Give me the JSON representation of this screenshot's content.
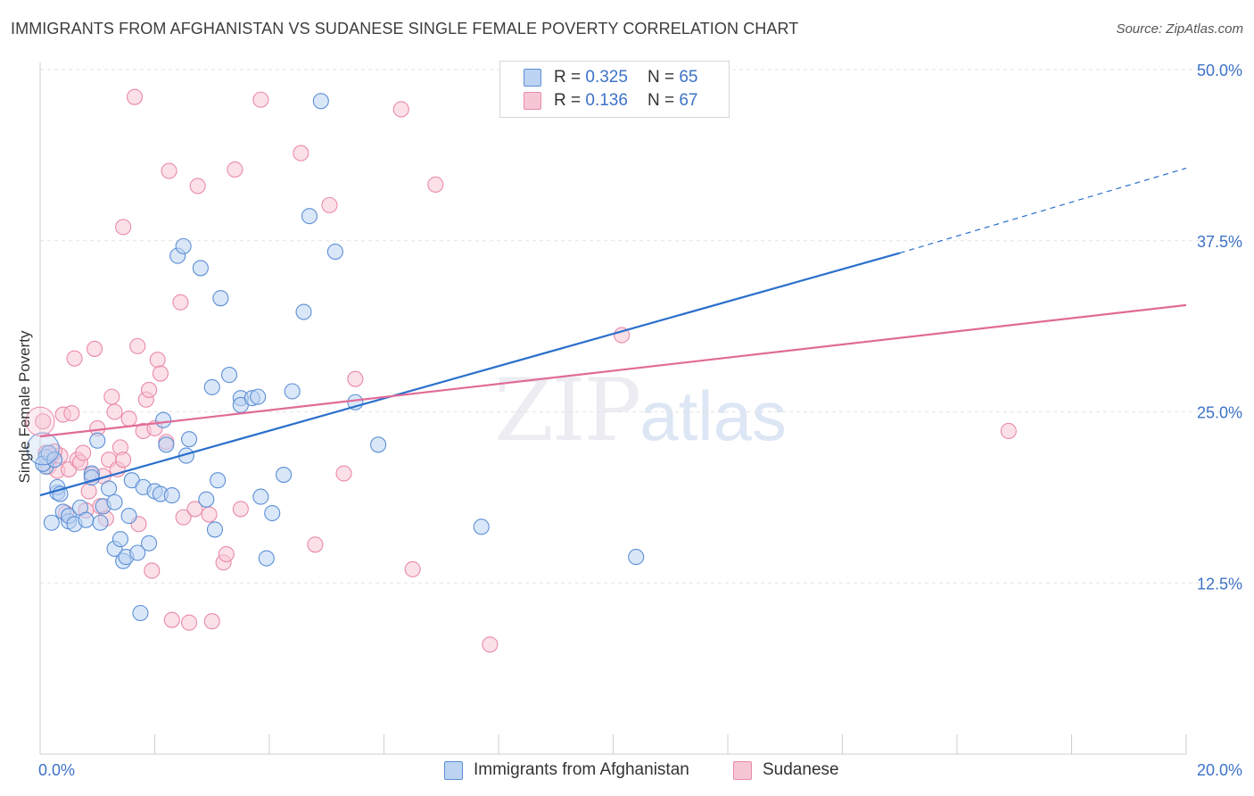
{
  "header": {
    "title": "IMMIGRANTS FROM AFGHANISTAN VS SUDANESE SINGLE FEMALE POVERTY CORRELATION CHART",
    "source": "Source: ZipAtlas.com"
  },
  "legend": {
    "rows": [
      {
        "r_label": "R =",
        "r_value": "0.325",
        "n_label": "N =",
        "n_value": "65"
      },
      {
        "r_label": "R =",
        "r_value": "0.136",
        "n_label": "N =",
        "n_value": "67"
      }
    ]
  },
  "bottom_legend": {
    "series1": "Immigrants from Afghanistan",
    "series2": "Sudanese"
  },
  "watermark": {
    "zip": "ZIP",
    "atlas": "atlas"
  },
  "colors": {
    "blue": "#5b8fd6",
    "blue_fill": "#bcd3f2",
    "blue_line": "#2a6fcc",
    "pink": "#e98aa8",
    "pink_fill": "#f7c6d5",
    "pink_line": "#e06b97",
    "axis_text": "#3d72c7"
  },
  "chart_data": {
    "type": "scatter",
    "title": "IMMIGRANTS FROM AFGHANISTAN VS SUDANESE SINGLE FEMALE POVERTY CORRELATION CHART",
    "xlabel": "",
    "ylabel": "Single Female Poverty",
    "xlim": [
      0,
      20
    ],
    "ylim": [
      0,
      50
    ],
    "x_tick_labels": [
      "0.0%",
      "20.0%"
    ],
    "y_ticks": [
      12.5,
      25.0,
      37.5,
      50.0
    ],
    "y_tick_labels": [
      "12.5%",
      "25.0%",
      "37.5%",
      "50.0%"
    ],
    "grid": true,
    "legend_position": "top-center",
    "series": [
      {
        "name": "Immigrants from Afghanistan",
        "color": "#5b8fd6",
        "r": 0.325,
        "n": 65,
        "trend": {
          "x0": 0,
          "y0": 18.9,
          "x1": 15.0,
          "y1": 36.6,
          "dashed_to_x": 20,
          "dashed_to_y": 42.8
        },
        "points": [
          [
            0.1,
            21.0
          ],
          [
            0.1,
            21.7
          ],
          [
            0.2,
            16.9
          ],
          [
            0.3,
            19.1
          ],
          [
            0.3,
            19.5
          ],
          [
            0.35,
            19.0
          ],
          [
            0.4,
            17.7
          ],
          [
            0.5,
            17.0
          ],
          [
            0.5,
            17.4
          ],
          [
            0.6,
            16.8
          ],
          [
            0.7,
            18.0
          ],
          [
            0.8,
            17.1
          ],
          [
            0.9,
            20.5
          ],
          [
            0.9,
            20.2
          ],
          [
            1.0,
            22.9
          ],
          [
            1.1,
            18.1
          ],
          [
            1.2,
            19.4
          ],
          [
            1.3,
            18.4
          ],
          [
            1.3,
            15.0
          ],
          [
            1.4,
            15.7
          ],
          [
            1.45,
            14.1
          ],
          [
            1.5,
            14.4
          ],
          [
            1.55,
            17.4
          ],
          [
            1.6,
            20.0
          ],
          [
            1.7,
            14.7
          ],
          [
            1.75,
            10.3
          ],
          [
            1.8,
            19.5
          ],
          [
            1.9,
            15.4
          ],
          [
            2.0,
            19.2
          ],
          [
            2.1,
            19.0
          ],
          [
            2.15,
            24.4
          ],
          [
            2.2,
            22.6
          ],
          [
            2.3,
            18.9
          ],
          [
            2.4,
            36.4
          ],
          [
            2.5,
            37.1
          ],
          [
            2.55,
            21.8
          ],
          [
            2.6,
            23.0
          ],
          [
            2.8,
            35.5
          ],
          [
            2.9,
            18.6
          ],
          [
            3.0,
            26.8
          ],
          [
            3.05,
            16.4
          ],
          [
            3.1,
            20.0
          ],
          [
            3.15,
            33.3
          ],
          [
            3.3,
            27.7
          ],
          [
            3.5,
            26.0
          ],
          [
            3.5,
            25.5
          ],
          [
            3.7,
            26.0
          ],
          [
            3.8,
            26.1
          ],
          [
            3.85,
            18.8
          ],
          [
            3.95,
            14.3
          ],
          [
            4.05,
            17.6
          ],
          [
            4.25,
            20.4
          ],
          [
            4.4,
            26.5
          ],
          [
            4.6,
            32.3
          ],
          [
            4.7,
            39.3
          ],
          [
            4.9,
            47.7
          ],
          [
            5.15,
            36.7
          ],
          [
            5.5,
            25.7
          ],
          [
            5.9,
            22.6
          ],
          [
            7.7,
            16.6
          ],
          [
            10.4,
            14.4
          ],
          [
            0.05,
            21.2
          ],
          [
            0.15,
            22.0
          ],
          [
            0.25,
            21.5
          ],
          [
            1.05,
            16.9
          ]
        ]
      },
      {
        "name": "Sudanese",
        "color": "#e98aa8",
        "r": 0.136,
        "n": 67,
        "trend": {
          "x0": 0,
          "y0": 23.2,
          "x1": 20,
          "y1": 32.8
        },
        "points": [
          [
            0.05,
            24.3
          ],
          [
            0.1,
            22.0
          ],
          [
            0.15,
            21.0
          ],
          [
            0.2,
            21.8
          ],
          [
            0.3,
            20.7
          ],
          [
            0.35,
            21.8
          ],
          [
            0.4,
            24.8
          ],
          [
            0.45,
            17.6
          ],
          [
            0.5,
            20.8
          ],
          [
            0.55,
            24.9
          ],
          [
            0.6,
            28.9
          ],
          [
            0.65,
            21.5
          ],
          [
            0.7,
            21.3
          ],
          [
            0.75,
            22.0
          ],
          [
            0.8,
            17.8
          ],
          [
            0.85,
            19.2
          ],
          [
            0.9,
            20.4
          ],
          [
            0.95,
            29.6
          ],
          [
            1.0,
            23.8
          ],
          [
            1.05,
            18.1
          ],
          [
            1.1,
            20.3
          ],
          [
            1.2,
            21.5
          ],
          [
            1.25,
            26.1
          ],
          [
            1.3,
            25.0
          ],
          [
            1.35,
            20.8
          ],
          [
            1.4,
            22.4
          ],
          [
            1.45,
            21.5
          ],
          [
            1.45,
            38.5
          ],
          [
            1.55,
            24.5
          ],
          [
            1.65,
            48.0
          ],
          [
            1.7,
            29.8
          ],
          [
            1.72,
            16.8
          ],
          [
            1.8,
            23.6
          ],
          [
            1.85,
            25.9
          ],
          [
            1.9,
            26.6
          ],
          [
            1.95,
            13.4
          ],
          [
            2.0,
            23.8
          ],
          [
            2.05,
            28.8
          ],
          [
            2.1,
            27.8
          ],
          [
            2.2,
            22.8
          ],
          [
            2.25,
            42.6
          ],
          [
            2.3,
            9.8
          ],
          [
            2.45,
            33.0
          ],
          [
            2.5,
            17.3
          ],
          [
            2.6,
            9.6
          ],
          [
            2.7,
            17.9
          ],
          [
            2.75,
            41.5
          ],
          [
            2.95,
            17.5
          ],
          [
            3.0,
            9.7
          ],
          [
            3.2,
            14.0
          ],
          [
            3.25,
            14.6
          ],
          [
            3.4,
            42.7
          ],
          [
            3.5,
            17.9
          ],
          [
            3.85,
            47.8
          ],
          [
            4.55,
            43.9
          ],
          [
            4.8,
            15.3
          ],
          [
            5.05,
            40.1
          ],
          [
            5.3,
            20.5
          ],
          [
            5.5,
            27.4
          ],
          [
            6.3,
            47.1
          ],
          [
            6.5,
            13.5
          ],
          [
            6.9,
            41.6
          ],
          [
            7.85,
            8.0
          ],
          [
            10.15,
            30.6
          ],
          [
            16.9,
            23.6
          ],
          [
            0.25,
            22.1
          ],
          [
            1.15,
            17.2
          ]
        ]
      }
    ]
  }
}
